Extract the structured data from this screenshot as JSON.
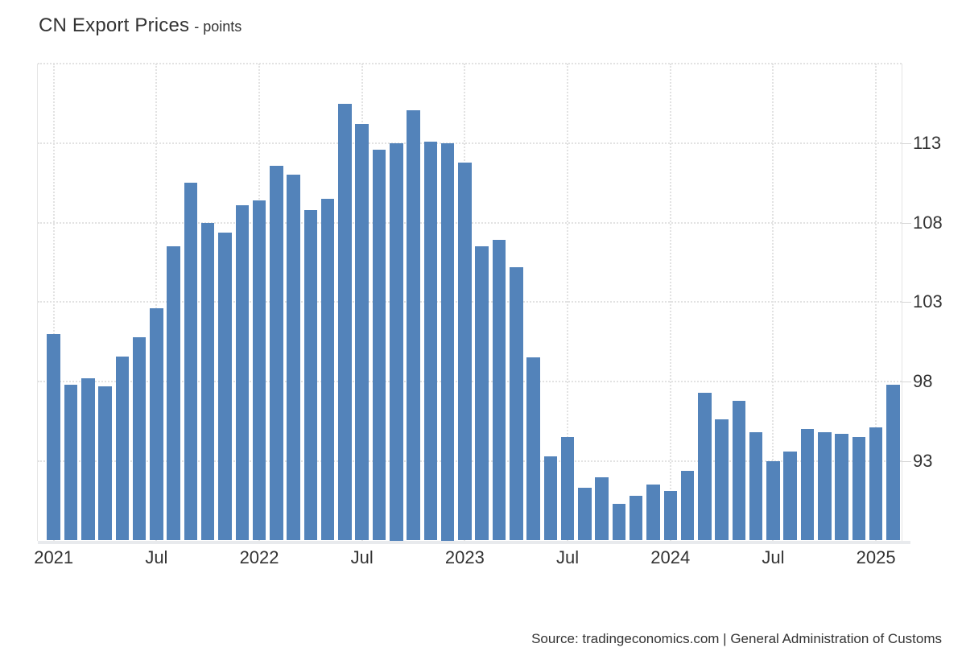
{
  "header": {
    "title": "CN Export Prices",
    "subtitle": "- points"
  },
  "source": "Source: tradingeconomics.com | General Administration of Customs",
  "colors": {
    "bar": "#5383ba",
    "grid_dotted": "#e2e2e2",
    "axis_band": "#e8eaed",
    "axis_text": "#333333",
    "title_text": "#333333"
  },
  "chart_data": {
    "type": "bar",
    "title": "CN Export Prices",
    "unit": "points",
    "legend": "none",
    "grid": "dotted",
    "ylim": [
      88,
      118.1
    ],
    "x": [
      "Jan 2021",
      "Feb 2021",
      "Mar 2021",
      "Apr 2021",
      "May 2021",
      "Jun 2021",
      "Jul 2021",
      "Aug 2021",
      "Sep 2021",
      "Oct 2021",
      "Nov 2021",
      "Dec 2021",
      "Jan 2022",
      "Feb 2022",
      "Mar 2022",
      "Apr 2022",
      "May 2022",
      "Jun 2022",
      "Jul 2022",
      "Aug 2022",
      "Sep 2022",
      "Oct 2022",
      "Nov 2022",
      "Dec 2022",
      "Jan 2023",
      "Feb 2023",
      "Mar 2023",
      "Apr 2023",
      "May 2023",
      "Jun 2023",
      "Jul 2023",
      "Aug 2023",
      "Sep 2023",
      "Oct 2023",
      "Nov 2023",
      "Dec 2023",
      "Jan 2024",
      "Feb 2024",
      "Mar 2024",
      "Apr 2024",
      "May 2024",
      "Jun 2024",
      "Jul 2024",
      "Aug 2024",
      "Sep 2024",
      "Oct 2024",
      "Nov 2024",
      "Dec 2024",
      "Jan 2025",
      "Feb 2025"
    ],
    "values": [
      101.0,
      97.8,
      98.2,
      97.7,
      99.6,
      100.8,
      102.6,
      106.5,
      110.5,
      108.0,
      107.4,
      109.1,
      109.4,
      111.6,
      111.0,
      108.8,
      109.5,
      115.5,
      114.2,
      112.6,
      113.0,
      115.1,
      113.1,
      113.0,
      111.8,
      106.5,
      106.9,
      105.2,
      99.5,
      93.3,
      94.5,
      91.3,
      92.0,
      90.3,
      90.8,
      91.5,
      91.1,
      92.4,
      97.3,
      95.6,
      96.8,
      94.8,
      93.0,
      93.6,
      95.0,
      94.8,
      94.7,
      94.5,
      95.1,
      97.8
    ],
    "yticks": [
      {
        "value": 113,
        "label": "113"
      },
      {
        "value": 108,
        "label": "108"
      },
      {
        "value": 103,
        "label": "103"
      },
      {
        "value": 98,
        "label": "98"
      },
      {
        "value": 93,
        "label": "93"
      }
    ],
    "unlabeled_gridlines": [
      118
    ],
    "xticks": [
      {
        "month_index": 0,
        "label": "2021"
      },
      {
        "month_index": 6,
        "label": "Jul"
      },
      {
        "month_index": 12,
        "label": "2022"
      },
      {
        "month_index": 18,
        "label": "Jul"
      },
      {
        "month_index": 24,
        "label": "2023"
      },
      {
        "month_index": 30,
        "label": "Jul"
      },
      {
        "month_index": 36,
        "label": "2024"
      },
      {
        "month_index": 42,
        "label": "Jul"
      },
      {
        "month_index": 48,
        "label": "2025"
      }
    ]
  }
}
